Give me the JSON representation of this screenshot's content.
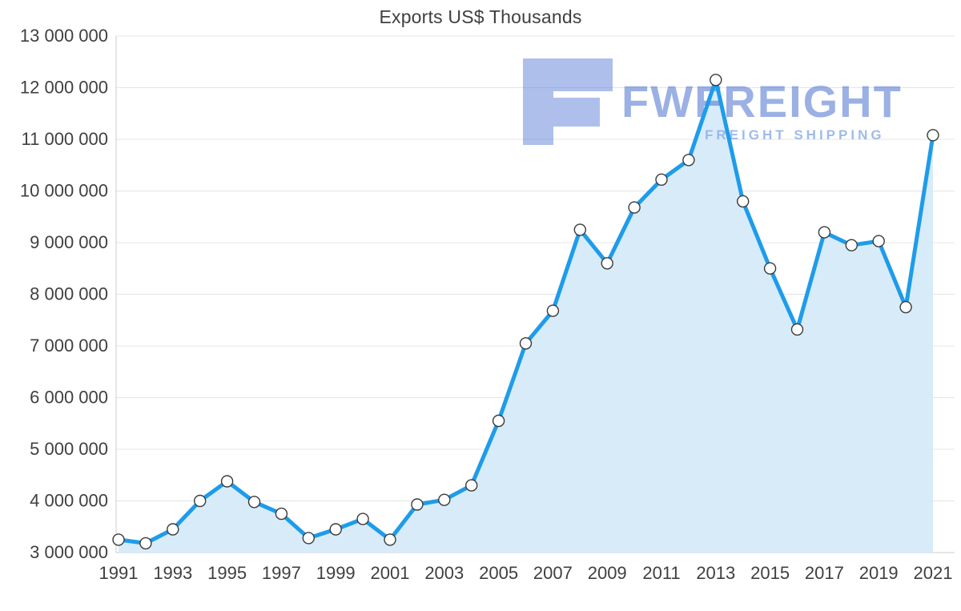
{
  "chart_data": {
    "type": "line",
    "title": "Exports US$ Thousands",
    "xlabel": "",
    "ylabel": "",
    "ylim": [
      3000000,
      13000000
    ],
    "grid": "horizontal",
    "legend": "none",
    "years": [
      1991,
      1992,
      1993,
      1994,
      1995,
      1996,
      1997,
      1998,
      1999,
      2000,
      2001,
      2002,
      2003,
      2004,
      2005,
      2006,
      2007,
      2008,
      2009,
      2010,
      2011,
      2012,
      2013,
      2014,
      2015,
      2016,
      2017,
      2018,
      2019,
      2020,
      2021
    ],
    "series": [
      {
        "name": "Exports US$ Thousands",
        "values": [
          3250000,
          3180000,
          3450000,
          4000000,
          4380000,
          3980000,
          3750000,
          3280000,
          3450000,
          3650000,
          3250000,
          3930000,
          4020000,
          4300000,
          5550000,
          7050000,
          7680000,
          9250000,
          8600000,
          9680000,
          10220000,
          10600000,
          12150000,
          9800000,
          8500000,
          7320000,
          9200000,
          8950000,
          9030000,
          7750000,
          11080000
        ]
      }
    ],
    "y_ticks": [
      3000000,
      4000000,
      5000000,
      6000000,
      7000000,
      8000000,
      9000000,
      10000000,
      11000000,
      12000000,
      13000000
    ],
    "y_tick_labels": [
      "3 000 000",
      "4 000 000",
      "5 000 000",
      "6 000 000",
      "7 000 000",
      "8 000 000",
      "9 000 000",
      "10 000 000",
      "11 000 000",
      "12 000 000",
      "13 000 000"
    ],
    "x_tick_years": [
      1991,
      1993,
      1995,
      1997,
      1999,
      2001,
      2003,
      2005,
      2007,
      2009,
      2011,
      2013,
      2015,
      2017,
      2019,
      2021
    ],
    "colors": {
      "line": "#1e9ceb",
      "area": "#d8ebf9",
      "marker_fill": "#ffffff",
      "marker_stroke": "#3a3a3a",
      "grid": "#e4e4e4",
      "axis": "#cccccc",
      "text": "#3f3f3f"
    }
  },
  "watermark": {
    "brand": "FWFREIGHT",
    "tagline": "FREIGHT SHIPPING",
    "logo_color": "#5d7fd8",
    "brand_color": "#4a70cf",
    "tagline_color": "#8fb0e6"
  }
}
